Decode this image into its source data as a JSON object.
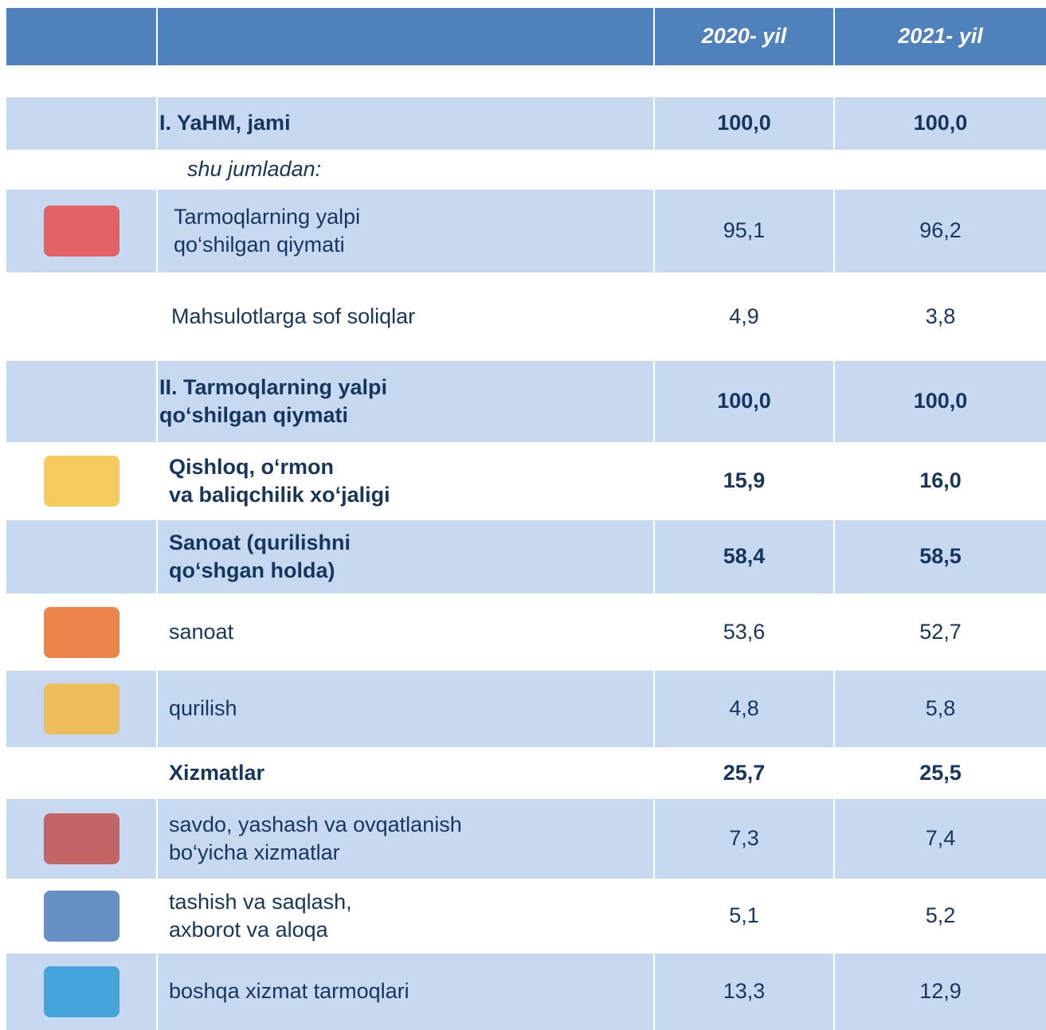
{
  "header": {
    "columns": [
      "2020- yil",
      "2021- yil"
    ]
  },
  "table": {
    "rows": [
      {
        "label": "I. YaHM, jami",
        "values": [
          "100,0",
          "100,0"
        ],
        "bold": true
      },
      {
        "label": "shu jumladan:",
        "italic": true
      },
      {
        "label": "Tarmoqlarning yalpi\nqo‘shilgan qiymati",
        "values": [
          "95,1",
          "96,2"
        ]
      },
      {
        "label": "Mahsulotlarga sof soliqlar",
        "values": [
          "4,9",
          "3,8"
        ]
      },
      {
        "label": "II. Tarmoqlarning yalpi\nqo‘shilgan qiymati",
        "values": [
          "100,0",
          "100,0"
        ],
        "bold": true
      },
      {
        "label": "Qishloq, o‘rmon\nva baliqchilik xo‘jaligi",
        "values": [
          "15,9",
          "16,0"
        ],
        "bold": true
      },
      {
        "label": "Sanoat (qurilishni\nqo‘shgan holda)",
        "values": [
          "58,4",
          "58,5"
        ],
        "bold": true
      },
      {
        "label": "sanoat",
        "values": [
          "53,6",
          "52,7"
        ]
      },
      {
        "label": "qurilish",
        "values": [
          "4,8",
          "5,8"
        ]
      },
      {
        "label": "Xizmatlar",
        "values": [
          "25,7",
          "25,5"
        ],
        "bold": true
      },
      {
        "label": "savdo, yashash va ovqatlanish\nbo‘yicha xizmatlar",
        "values": [
          "7,3",
          "7,4"
        ]
      },
      {
        "label": "tashish va saqlash,\naxborot va aloqa",
        "values": [
          "5,1",
          "5,2"
        ]
      },
      {
        "label": "boshqa xizmat tarmoqlari",
        "values": [
          "13,3",
          "12,9"
        ]
      }
    ]
  }
}
